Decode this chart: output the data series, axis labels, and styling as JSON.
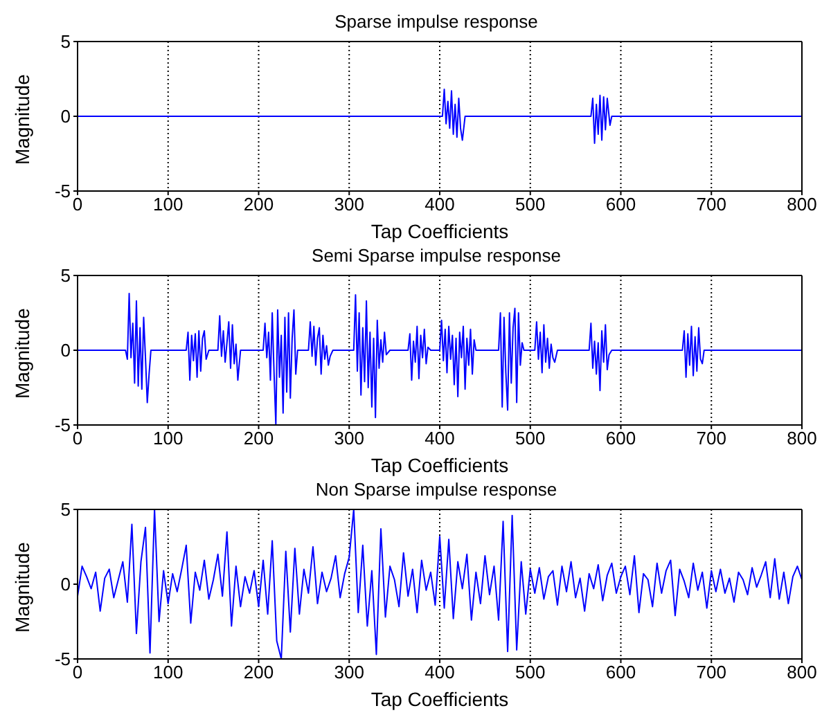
{
  "chart_data": [
    {
      "type": "line",
      "title": "Sparse impulse response",
      "xlabel": "Tap Coefficients",
      "ylabel": "Magnitude",
      "xlim": [
        0,
        800
      ],
      "xticks": [
        0,
        100,
        200,
        300,
        400,
        500,
        600,
        700,
        800
      ],
      "ylim": [
        -5,
        5
      ],
      "yticks": [
        -5,
        0,
        5
      ],
      "grid": "x",
      "series": [
        {
          "color": "#0000ff",
          "x": [
            0,
            403,
            405,
            407,
            409,
            411,
            413,
            415,
            417,
            419,
            421,
            423,
            425,
            428,
            567,
            569,
            571,
            573,
            575,
            577,
            579,
            581,
            583,
            585,
            588,
            590,
            800
          ],
          "values": [
            0,
            0,
            1.8,
            -0.5,
            1.0,
            -0.8,
            1.7,
            -1.2,
            0.8,
            -1.4,
            1.2,
            -0.8,
            -1.6,
            0,
            0,
            1.2,
            -1.8,
            0.8,
            -1.2,
            1.4,
            -1.6,
            1.3,
            -0.9,
            1.2,
            -0.6,
            0,
            0
          ]
        }
      ]
    },
    {
      "type": "line",
      "title": "Semi Sparse impulse response",
      "xlabel": "Tap Coefficients",
      "ylabel": "Magnitude",
      "xlim": [
        0,
        800
      ],
      "xticks": [
        0,
        100,
        200,
        300,
        400,
        500,
        600,
        700,
        800
      ],
      "ylim": [
        -5,
        5
      ],
      "yticks": [
        -5,
        0,
        5
      ],
      "grid": "x",
      "series": [
        {
          "color": "#0000ff",
          "x": [
            0,
            53,
            55,
            57,
            59,
            61,
            63,
            65,
            67,
            69,
            71,
            73,
            75,
            77,
            79,
            81,
            83,
            120,
            122,
            124,
            126,
            128,
            130,
            132,
            134,
            136,
            138,
            140,
            142,
            145,
            155,
            157,
            159,
            161,
            163,
            165,
            167,
            169,
            171,
            173,
            175,
            177,
            180,
            205,
            207,
            209,
            211,
            213,
            215,
            217,
            219,
            221,
            223,
            225,
            227,
            229,
            231,
            233,
            235,
            237,
            239,
            241,
            243,
            255,
            257,
            259,
            261,
            263,
            265,
            267,
            269,
            271,
            273,
            275,
            277,
            279,
            282,
            305,
            307,
            309,
            311,
            313,
            315,
            317,
            319,
            321,
            323,
            325,
            327,
            329,
            331,
            333,
            335,
            337,
            339,
            341,
            345,
            365,
            367,
            369,
            371,
            373,
            375,
            377,
            379,
            381,
            383,
            385,
            387,
            390,
            400,
            402,
            404,
            406,
            408,
            410,
            412,
            414,
            416,
            418,
            420,
            422,
            424,
            426,
            428,
            430,
            432,
            434,
            436,
            438,
            440,
            465,
            467,
            469,
            471,
            473,
            475,
            477,
            479,
            481,
            483,
            485,
            487,
            489,
            491,
            493,
            505,
            507,
            509,
            511,
            513,
            515,
            517,
            519,
            521,
            523,
            525,
            527,
            530,
            565,
            567,
            569,
            571,
            573,
            575,
            577,
            579,
            581,
            583,
            585,
            587,
            590,
            668,
            670,
            672,
            674,
            676,
            678,
            680,
            682,
            684,
            686,
            688,
            690,
            692,
            800
          ],
          "values": [
            0,
            0,
            -0.6,
            3.8,
            -0.5,
            1.8,
            -2.2,
            3.3,
            -2.4,
            1.5,
            -2.6,
            2.2,
            -0.5,
            -3.5,
            -1.6,
            0,
            0,
            0,
            1.2,
            -2.0,
            1.0,
            -0.7,
            1.1,
            -1.8,
            1.3,
            -1.4,
            0.8,
            1.3,
            -0.6,
            0,
            0,
            2.3,
            -0.4,
            1.3,
            -0.8,
            0.5,
            1.9,
            -1.2,
            1.7,
            -0.9,
            0.4,
            -2.0,
            0,
            0,
            1.8,
            -0.5,
            1.2,
            -2.0,
            2.5,
            -1.5,
            -5.0,
            2.7,
            -1.8,
            1.0,
            -4.2,
            2.2,
            -2.8,
            2.5,
            -3.2,
            0.8,
            2.7,
            -1.6,
            0,
            0,
            1.9,
            -0.4,
            1.6,
            -1.0,
            0.8,
            1.5,
            -1.6,
            1.0,
            -0.6,
            0.3,
            -1.0,
            -0.4,
            0,
            0,
            3.7,
            -1.4,
            2.5,
            -3.0,
            1.5,
            -2.1,
            3.3,
            -2.5,
            1.2,
            -3.8,
            0.8,
            -4.5,
            2.0,
            -1.2,
            0.7,
            -0.8,
            1.2,
            -0.3,
            0,
            0,
            1.1,
            -2.0,
            0.6,
            -0.8,
            1.6,
            -1.9,
            1.0,
            -0.5,
            1.4,
            -0.9,
            0.2,
            0,
            0,
            2.0,
            -0.7,
            1.4,
            -1.5,
            1.6,
            -0.6,
            1.0,
            -2.3,
            0.8,
            -3.1,
            1.2,
            -0.5,
            1.6,
            -2.6,
            0.8,
            -1.0,
            1.4,
            -1.6,
            0.7,
            0,
            0,
            2.5,
            -3.8,
            2.2,
            -1.5,
            -4.0,
            2.5,
            -2.2,
            1.5,
            2.8,
            -3.5,
            2.5,
            -1.0,
            0.5,
            0,
            0,
            1.9,
            -0.6,
            1.2,
            -1.5,
            1.7,
            -0.8,
            0.8,
            -1.2,
            0.4,
            -0.5,
            -0.8,
            0,
            0,
            1.8,
            -1.2,
            0.6,
            -1.6,
            0.5,
            -2.7,
            1.3,
            -0.8,
            1.7,
            -1.3,
            -0.3,
            0,
            0,
            1.3,
            -1.8,
            1.1,
            -1.0,
            1.6,
            -1.7,
            0.9,
            -1.4,
            1.5,
            -0.6,
            -0.9,
            0,
            0
          ]
        }
      ]
    },
    {
      "type": "line",
      "title": "Non Sparse impulse response",
      "xlabel": "Tap Coefficients",
      "ylabel": "Magnitude",
      "xlim": [
        0,
        800
      ],
      "xticks": [
        0,
        100,
        200,
        300,
        400,
        500,
        600,
        700,
        800
      ],
      "ylim": [
        -5,
        5
      ],
      "yticks": [
        -5,
        0,
        5
      ],
      "grid": "x",
      "series": [
        {
          "color": "#0000ff",
          "x": [
            0,
            5,
            10,
            15,
            20,
            25,
            30,
            35,
            40,
            45,
            50,
            55,
            60,
            65,
            70,
            75,
            80,
            85,
            90,
            95,
            100,
            105,
            110,
            115,
            120,
            125,
            130,
            135,
            140,
            145,
            150,
            155,
            160,
            165,
            170,
            175,
            180,
            185,
            190,
            195,
            200,
            205,
            210,
            215,
            220,
            225,
            230,
            235,
            240,
            245,
            250,
            255,
            260,
            265,
            270,
            275,
            280,
            285,
            290,
            295,
            300,
            305,
            310,
            315,
            320,
            325,
            330,
            335,
            340,
            345,
            350,
            355,
            360,
            365,
            370,
            375,
            380,
            385,
            390,
            395,
            400,
            405,
            410,
            415,
            420,
            425,
            430,
            435,
            440,
            445,
            450,
            455,
            460,
            465,
            470,
            475,
            480,
            485,
            490,
            495,
            500,
            505,
            510,
            515,
            520,
            525,
            530,
            535,
            540,
            545,
            550,
            555,
            560,
            565,
            570,
            575,
            580,
            585,
            590,
            595,
            600,
            605,
            610,
            615,
            620,
            625,
            630,
            635,
            640,
            645,
            650,
            655,
            660,
            665,
            670,
            675,
            680,
            685,
            690,
            695,
            700,
            705,
            710,
            715,
            720,
            725,
            730,
            735,
            740,
            745,
            750,
            755,
            760,
            765,
            770,
            775,
            780,
            785,
            790,
            795,
            800
          ],
          "values": [
            -0.8,
            1.2,
            0.5,
            -0.3,
            0.8,
            -1.8,
            0.4,
            1.0,
            -0.9,
            0.3,
            1.5,
            -1.2,
            4.0,
            -3.3,
            1.5,
            3.8,
            -4.6,
            5.0,
            -2.5,
            0.9,
            -1.3,
            0.7,
            -0.5,
            1.0,
            2.6,
            -2.6,
            0.8,
            -0.4,
            1.6,
            -1.0,
            0.3,
            2.0,
            -0.8,
            3.5,
            -2.8,
            1.2,
            -1.5,
            0.5,
            -0.6,
            0.9,
            -1.5,
            1.6,
            -2.0,
            2.9,
            -3.8,
            -5.0,
            2.2,
            -3.2,
            2.4,
            -2.0,
            1.0,
            -0.6,
            2.5,
            -1.3,
            0.8,
            -0.5,
            0.4,
            1.9,
            -0.9,
            0.7,
            1.8,
            5.0,
            -1.9,
            2.6,
            -2.8,
            0.9,
            -4.7,
            3.7,
            -2.2,
            1.2,
            0.3,
            -1.5,
            2.1,
            -0.8,
            1.0,
            -1.9,
            1.6,
            -0.4,
            0.8,
            -1.4,
            3.2,
            -1.6,
            3.0,
            -2.3,
            1.5,
            -0.3,
            2.0,
            -2.4,
            0.8,
            -1.3,
            1.9,
            -0.7,
            1.2,
            -2.4,
            4.2,
            -4.5,
            4.6,
            -4.4,
            1.5,
            -2.0,
            1.0,
            -0.6,
            1.1,
            -1.0,
            0.5,
            0.9,
            -1.4,
            1.2,
            -0.5,
            1.5,
            -0.9,
            0.4,
            -1.8,
            0.7,
            -0.3,
            1.3,
            -1.1,
            0.6,
            1.4,
            -0.6,
            0.5,
            1.2,
            -0.7,
            1.9,
            -1.9,
            0.7,
            0.3,
            -1.5,
            1.4,
            -0.6,
            0.9,
            1.6,
            -2.1,
            1.0,
            0.2,
            -0.9,
            1.4,
            -0.4,
            0.8,
            -1.6,
            0.9,
            -0.5,
            1.0,
            -0.6,
            0.4,
            -1.2,
            0.8,
            0.3,
            -0.7,
            1.1,
            -0.2,
            0.6,
            1.5,
            -0.9,
            1.7,
            -1.0,
            0.8,
            -1.3,
            0.5,
            1.2,
            0.3
          ]
        }
      ]
    }
  ]
}
